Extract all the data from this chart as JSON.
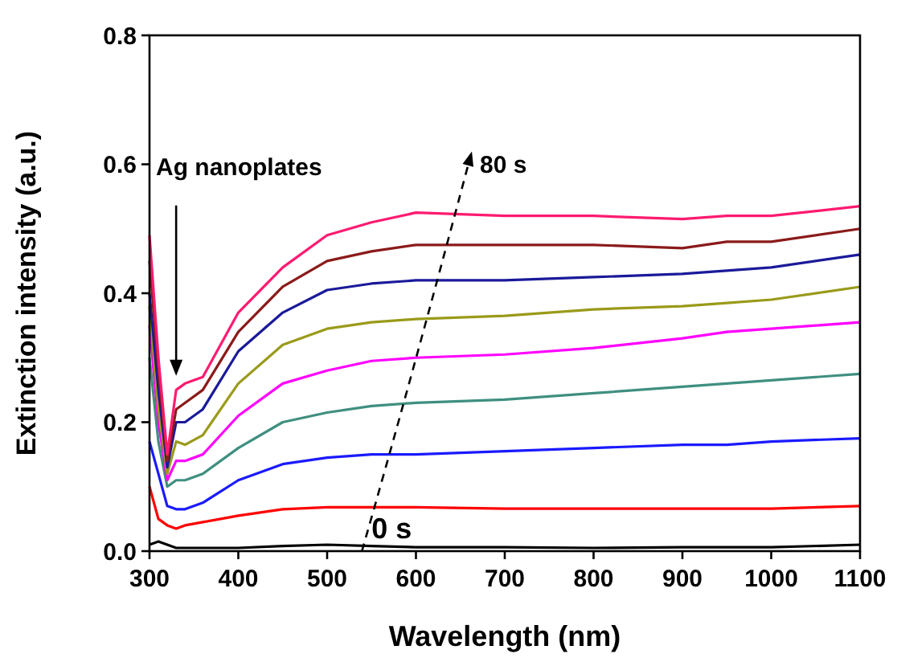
{
  "chart_data": {
    "type": "line",
    "xlabel": "Wavelength (nm)",
    "ylabel": "Extinction intensity (a.u.)",
    "x": [
      300,
      310,
      320,
      330,
      340,
      360,
      400,
      450,
      500,
      550,
      600,
      700,
      800,
      900,
      950,
      1000,
      1100
    ],
    "xlim": [
      300,
      1100
    ],
    "xticks": [
      300,
      400,
      500,
      600,
      700,
      800,
      900,
      1000,
      1100
    ],
    "ylim": [
      0,
      0.8
    ],
    "yticks": [
      {
        "value": 0,
        "label": "0.0"
      },
      0.2,
      0.4,
      0.6,
      0.8
    ],
    "grid": false,
    "marker": "none",
    "line_style": "solid",
    "series": [
      {
        "color": "#000000",
        "values": [
          0.01,
          0.015,
          0.01,
          0.005,
          0.005,
          0.005,
          0.005,
          0.008,
          0.01,
          0.008,
          0.006,
          0.006,
          0.005,
          0.006,
          0.006,
          0.006,
          0.01
        ]
      },
      {
        "color": "#ff0000",
        "values": [
          0.1,
          0.05,
          0.04,
          0.035,
          0.04,
          0.045,
          0.055,
          0.065,
          0.068,
          0.068,
          0.068,
          0.066,
          0.066,
          0.066,
          0.066,
          0.066,
          0.07
        ]
      },
      {
        "color": "#1a1aff",
        "values": [
          0.17,
          0.12,
          0.07,
          0.065,
          0.065,
          0.075,
          0.11,
          0.135,
          0.145,
          0.15,
          0.15,
          0.155,
          0.16,
          0.165,
          0.165,
          0.17,
          0.175
        ]
      },
      {
        "color": "#3f8f7f",
        "values": [
          0.3,
          0.17,
          0.1,
          0.11,
          0.11,
          0.12,
          0.16,
          0.2,
          0.215,
          0.225,
          0.23,
          0.235,
          0.245,
          0.255,
          0.26,
          0.265,
          0.275
        ]
      },
      {
        "color": "#ff00ff",
        "values": [
          0.35,
          0.2,
          0.11,
          0.14,
          0.14,
          0.15,
          0.21,
          0.26,
          0.28,
          0.295,
          0.3,
          0.305,
          0.315,
          0.33,
          0.34,
          0.345,
          0.355
        ]
      },
      {
        "color": "#9a9a1a",
        "values": [
          0.38,
          0.22,
          0.12,
          0.17,
          0.165,
          0.18,
          0.26,
          0.32,
          0.345,
          0.355,
          0.36,
          0.365,
          0.375,
          0.38,
          0.385,
          0.39,
          0.41
        ]
      },
      {
        "color": "#1a1a9a",
        "values": [
          0.4,
          0.25,
          0.13,
          0.2,
          0.2,
          0.22,
          0.31,
          0.37,
          0.405,
          0.415,
          0.42,
          0.42,
          0.425,
          0.43,
          0.435,
          0.44,
          0.46
        ]
      },
      {
        "color": "#8b1a1a",
        "values": [
          0.45,
          0.28,
          0.14,
          0.22,
          0.23,
          0.25,
          0.34,
          0.41,
          0.45,
          0.465,
          0.475,
          0.475,
          0.475,
          0.47,
          0.48,
          0.48,
          0.5
        ]
      },
      {
        "color": "#ff1a70",
        "values": [
          0.49,
          0.3,
          0.15,
          0.25,
          0.26,
          0.27,
          0.37,
          0.44,
          0.49,
          0.51,
          0.525,
          0.52,
          0.52,
          0.515,
          0.52,
          0.52,
          0.535
        ]
      }
    ],
    "annotations": [
      "Ag nanoplates",
      "80 s",
      "0 s"
    ]
  }
}
